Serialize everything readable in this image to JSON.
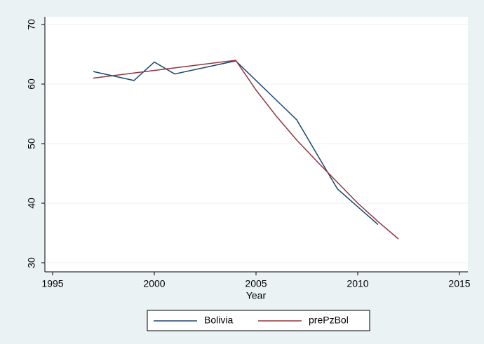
{
  "chart_data": {
    "type": "line",
    "x_label": "Year",
    "xlim": [
      1995,
      2015
    ],
    "xticks": [
      1995,
      2000,
      2005,
      2010,
      2015
    ],
    "ylim": [
      30,
      70
    ],
    "yticks": [
      30,
      40,
      50,
      60,
      70
    ],
    "grid": true,
    "legend": "bottom",
    "series": [
      {
        "name": "Bolivia",
        "color": "#1a476f",
        "x": [
          1997,
          1999,
          2000,
          2001,
          2004,
          2007,
          2009,
          2011
        ],
        "values": [
          62.1,
          60.6,
          63.7,
          61.7,
          63.9,
          54.0,
          42.4,
          36.4
        ]
      },
      {
        "name": "prePzBol",
        "color": "#90353b",
        "x": [
          1997,
          2004,
          2005,
          2006,
          2007,
          2008,
          2009,
          2010,
          2011,
          2012
        ],
        "values": [
          61.0,
          64.0,
          59.0,
          54.6,
          50.6,
          47.0,
          43.5,
          40.0,
          36.9,
          34.0
        ]
      }
    ]
  }
}
